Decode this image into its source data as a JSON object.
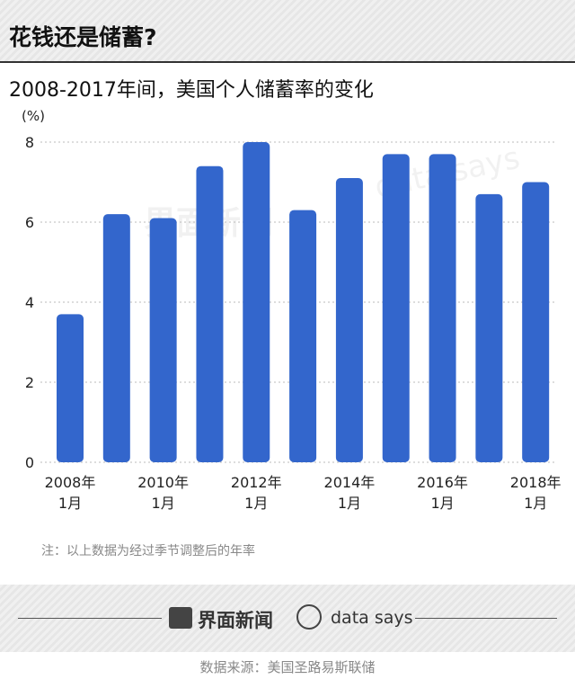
{
  "header": {
    "title": "花钱还是储蓄?"
  },
  "chart_data": {
    "type": "bar",
    "title": "2008-2017年间，美国个人储蓄率的变化",
    "y_label": "(%)",
    "categories": [
      "2008年\n1月",
      null,
      "2010年\n1月",
      null,
      "2012年\n1月",
      null,
      "2014年\n1月",
      null,
      "2016年\n1月",
      null,
      "2018年\n1月"
    ],
    "values": [
      3.7,
      6.2,
      6.1,
      7.4,
      8.0,
      6.3,
      7.1,
      7.7,
      7.7,
      6.7,
      7.0
    ],
    "color": "#3366cc",
    "ylim": [
      0,
      8
    ],
    "yticks": [
      0,
      2,
      4,
      6,
      8
    ],
    "grid": true,
    "note": "注：以上数据为经过季节调整后的年率"
  },
  "footer": {
    "brand": "界面新闻",
    "partner": "data says",
    "source": "数据来源：美国圣路易斯联储"
  }
}
